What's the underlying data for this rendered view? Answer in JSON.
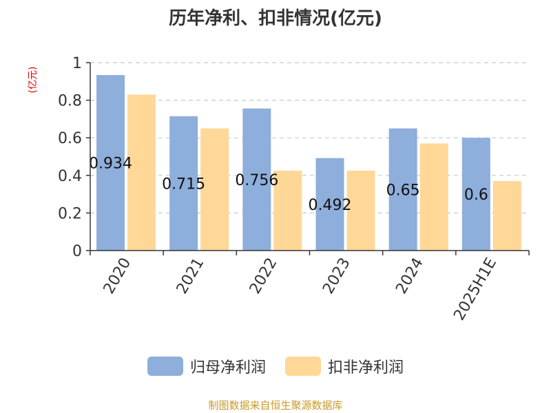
{
  "chart_data": {
    "type": "bar",
    "title": "历年净利、扣非情况(亿元)",
    "unit_label": "(亿元)",
    "categories": [
      "2020",
      "2021",
      "2022",
      "2023",
      "2024",
      "2025H1E"
    ],
    "series": [
      {
        "name": "归母净利润",
        "color": "#8eaedb",
        "values": [
          0.934,
          0.715,
          0.756,
          0.492,
          0.65,
          0.6
        ]
      },
      {
        "name": "扣非净利润",
        "color": "#ffd898",
        "values": [
          0.83,
          0.65,
          0.425,
          0.425,
          0.57,
          0.37
        ]
      }
    ],
    "data_labels": [
      "0.934",
      "0.715",
      "0.756",
      "0.492",
      "0.65",
      "0.6"
    ],
    "ylim": [
      0,
      1
    ],
    "yticks": [
      "0",
      "0.2",
      "0.4",
      "0.6",
      "0.8",
      "1"
    ],
    "grid": true,
    "legend_position": "bottom"
  },
  "source_note": "制图数据来自恒生聚源数据库"
}
